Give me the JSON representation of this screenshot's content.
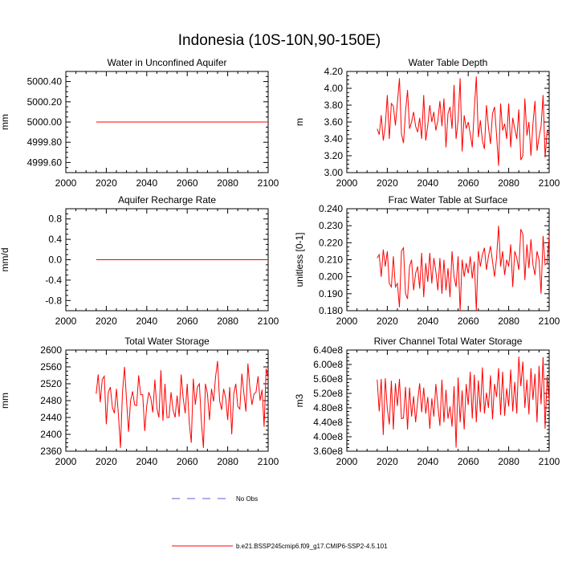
{
  "title": "Indonesia (10S-10N,90-150E)",
  "colors": {
    "series": "#ff0000",
    "obs": "#6a5acd",
    "axis": "#000000"
  },
  "legend": {
    "obs_label": "No Obs",
    "model_label": "b.e21.BSSP245cmip6.f09_g17.CMIP6-SSP2-4.5.101"
  },
  "chart_data": [
    {
      "id": "p1",
      "type": "line",
      "title": "Water in Unconfined Aquifer",
      "ylabel": "mm",
      "xlim": [
        2000,
        2100
      ],
      "ylim": [
        4999.5,
        5000.5
      ],
      "xticks": [
        2000,
        2020,
        2040,
        2060,
        2080,
        2100
      ],
      "yticks": [
        4999.6,
        4999.8,
        5000.0,
        5000.2,
        5000.4
      ],
      "yticklabels": [
        "4999.60",
        "4999.80",
        "5000.00",
        "5000.20",
        "5000.40"
      ],
      "series": [
        {
          "name": "b.e21.BSSP245cmip6.f09_g17.CMIP6-SSP2-4.5.101",
          "x_start": 2015,
          "x_end": 2100,
          "values": [
            5000.0,
            5000.0
          ]
        }
      ]
    },
    {
      "id": "p2",
      "type": "line",
      "title": "Water Table Depth",
      "ylabel": "m",
      "xlim": [
        2000,
        2100
      ],
      "ylim": [
        3.0,
        4.2
      ],
      "xticks": [
        2000,
        2020,
        2040,
        2060,
        2080,
        2100
      ],
      "yticks": [
        3.0,
        3.2,
        3.4,
        3.6,
        3.8,
        4.0,
        4.2
      ],
      "yticklabels": [
        "3.00",
        "3.20",
        "3.40",
        "3.60",
        "3.80",
        "4.00",
        "4.20"
      ],
      "series": [
        {
          "name": "b.e21.BSSP245cmip6.f09_g17.CMIP6-SSP2-4.5.101",
          "x_start": 2015,
          "x_end": 2100,
          "values": [
            3.52,
            3.45,
            3.68,
            3.38,
            3.55,
            3.92,
            3.4,
            3.82,
            3.79,
            3.56,
            3.83,
            4.12,
            3.46,
            3.35,
            3.72,
            3.98,
            3.52,
            3.6,
            3.72,
            3.55,
            3.48,
            3.65,
            3.4,
            3.92,
            3.38,
            3.56,
            3.8,
            3.6,
            3.72,
            3.5,
            3.62,
            3.85,
            3.55,
            3.88,
            3.3,
            3.7,
            3.78,
            3.52,
            4.04,
            3.4,
            3.62,
            4.12,
            3.25,
            3.68,
            3.52,
            3.6,
            3.46,
            3.3,
            3.75,
            4.14,
            3.42,
            3.62,
            3.38,
            3.28,
            3.8,
            3.54,
            3.34,
            3.7,
            3.78,
            3.45,
            3.08,
            3.82,
            3.5,
            3.58,
            3.4,
            3.82,
            3.3,
            3.65,
            3.52,
            3.4,
            3.75,
            3.15,
            3.2,
            3.88,
            3.44,
            3.6,
            3.2,
            3.58,
            3.85,
            3.26,
            3.42,
            3.55,
            3.92,
            3.18,
            3.5,
            3.45
          ]
        }
      ]
    },
    {
      "id": "p3",
      "type": "line",
      "title": "Aquifer Recharge Rate",
      "ylabel": "mm/d",
      "xlim": [
        2000,
        2100
      ],
      "ylim": [
        -1.0,
        1.0
      ],
      "xticks": [
        2000,
        2020,
        2040,
        2060,
        2080,
        2100
      ],
      "yticks": [
        -0.8,
        -0.4,
        0.0,
        0.4,
        0.8
      ],
      "yticklabels": [
        "-0.8",
        "-0.4",
        "0.0",
        "0.4",
        "0.8"
      ],
      "series": [
        {
          "name": "b.e21.BSSP245cmip6.f09_g17.CMIP6-SSP2-4.5.101",
          "x_start": 2015,
          "x_end": 2100,
          "values": [
            0.0,
            0.0
          ]
        }
      ]
    },
    {
      "id": "p4",
      "type": "line",
      "title": "Frac Water Table at Surface",
      "ylabel": "unitless [0-1]",
      "xlim": [
        2000,
        2100
      ],
      "ylim": [
        0.18,
        0.24
      ],
      "xticks": [
        2000,
        2020,
        2040,
        2060,
        2080,
        2100
      ],
      "yticks": [
        0.18,
        0.19,
        0.2,
        0.21,
        0.22,
        0.23,
        0.24
      ],
      "yticklabels": [
        "0.180",
        "0.190",
        "0.200",
        "0.210",
        "0.220",
        "0.230",
        "0.240"
      ],
      "series": [
        {
          "name": "b.e21.BSSP245cmip6.f09_g17.CMIP6-SSP2-4.5.101",
          "x_start": 2015,
          "x_end": 2100,
          "values": [
            0.211,
            0.213,
            0.2,
            0.216,
            0.206,
            0.215,
            0.196,
            0.194,
            0.212,
            0.194,
            0.196,
            0.182,
            0.215,
            0.217,
            0.19,
            0.187,
            0.206,
            0.21,
            0.192,
            0.202,
            0.206,
            0.193,
            0.214,
            0.188,
            0.208,
            0.197,
            0.214,
            0.196,
            0.211,
            0.203,
            0.192,
            0.211,
            0.19,
            0.21,
            0.192,
            0.205,
            0.188,
            0.215,
            0.2,
            0.194,
            0.212,
            0.18,
            0.21,
            0.2,
            0.208,
            0.202,
            0.212,
            0.199,
            0.209,
            0.18,
            0.215,
            0.206,
            0.213,
            0.217,
            0.204,
            0.212,
            0.218,
            0.209,
            0.2,
            0.211,
            0.23,
            0.206,
            0.215,
            0.201,
            0.21,
            0.206,
            0.219,
            0.194,
            0.215,
            0.211,
            0.204,
            0.228,
            0.225,
            0.198,
            0.219,
            0.205,
            0.222,
            0.207,
            0.201,
            0.215,
            0.21,
            0.19,
            0.224,
            0.207,
            0.208,
            0.224
          ]
        }
      ]
    },
    {
      "id": "p5",
      "type": "line",
      "title": "Total Water Storage",
      "ylabel": "mm",
      "xlim": [
        2000,
        2100
      ],
      "ylim": [
        2360,
        2600
      ],
      "xticks": [
        2000,
        2020,
        2040,
        2060,
        2080,
        2100
      ],
      "yticks": [
        2360,
        2400,
        2440,
        2480,
        2520,
        2560,
        2600
      ],
      "yticklabels": [
        "2360",
        "2400",
        "2440",
        "2480",
        "2520",
        "2560",
        "2600"
      ],
      "series": [
        {
          "name": "b.e21.BSSP245cmip6.f09_g17.CMIP6-SSP2-4.5.101",
          "x_start": 2015,
          "x_end": 2100,
          "values": [
            2496,
            2542,
            2476,
            2530,
            2538,
            2424,
            2500,
            2512,
            2464,
            2450,
            2508,
            2446,
            2368,
            2500,
            2560,
            2482,
            2406,
            2480,
            2502,
            2470,
            2468,
            2540,
            2494,
            2494,
            2408,
            2468,
            2500,
            2486,
            2452,
            2530,
            2462,
            2440,
            2552,
            2432,
            2520,
            2440,
            2440,
            2500,
            2458,
            2440,
            2492,
            2442,
            2542,
            2486,
            2450,
            2520,
            2428,
            2380,
            2532,
            2470,
            2512,
            2520,
            2430,
            2368,
            2520,
            2496,
            2434,
            2508,
            2478,
            2536,
            2574,
            2480,
            2458,
            2508,
            2486,
            2434,
            2512,
            2400,
            2496,
            2520,
            2466,
            2460,
            2544,
            2498,
            2454,
            2568,
            2508,
            2470,
            2496,
            2500,
            2538,
            2480,
            2506,
            2418,
            2556,
            2534
          ]
        }
      ]
    },
    {
      "id": "p6",
      "type": "line",
      "title": "River Channel Total Water Storage",
      "ylabel": "m3",
      "xlim": [
        2000,
        2100
      ],
      "ylim": [
        360000000.0,
        640000000.0
      ],
      "xticks": [
        2000,
        2020,
        2040,
        2060,
        2080,
        2100
      ],
      "yticks": [
        360000000.0,
        400000000.0,
        440000000.0,
        480000000.0,
        520000000.0,
        560000000.0,
        600000000.0,
        640000000.0
      ],
      "yticklabels": [
        "3.60e8",
        "4.00e8",
        "4.40e8",
        "4.80e8",
        "5.20e8",
        "5.60e8",
        "6.00e8",
        "6.40e8"
      ],
      "series": [
        {
          "name": "b.e21.BSSP245cmip6.f09_g17.CMIP6-SSP2-4.5.101",
          "x_start": 2015,
          "x_end": 2100,
          "values": [
            558000000.0,
            470000000.0,
            560000000.0,
            405000000.0,
            562000000.0,
            478000000.0,
            434000000.0,
            555000000.0,
            420000000.0,
            548000000.0,
            485000000.0,
            560000000.0,
            450000000.0,
            452000000.0,
            538000000.0,
            420000000.0,
            536000000.0,
            456000000.0,
            512000000.0,
            440000000.0,
            498000000.0,
            548000000.0,
            468000000.0,
            536000000.0,
            464000000.0,
            510000000.0,
            422000000.0,
            506000000.0,
            456000000.0,
            546000000.0,
            486000000.0,
            430000000.0,
            558000000.0,
            440000000.0,
            530000000.0,
            450000000.0,
            484000000.0,
            428000000.0,
            540000000.0,
            370000000.0,
            564000000.0,
            440000000.0,
            528000000.0,
            420000000.0,
            546000000.0,
            488000000.0,
            580000000.0,
            450000000.0,
            572000000.0,
            440000000.0,
            556000000.0,
            468000000.0,
            592000000.0,
            464000000.0,
            522000000.0,
            480000000.0,
            570000000.0,
            448000000.0,
            546000000.0,
            510000000.0,
            590000000.0,
            460000000.0,
            580000000.0,
            458000000.0,
            534000000.0,
            484000000.0,
            586000000.0,
            470000000.0,
            552000000.0,
            464000000.0,
            622000000.0,
            540000000.0,
            608000000.0,
            480000000.0,
            558000000.0,
            462000000.0,
            590000000.0,
            502000000.0,
            574000000.0,
            440000000.0,
            596000000.0,
            490000000.0,
            620000000.0,
            422000000.0,
            568000000.0,
            500000000.0
          ]
        }
      ]
    }
  ]
}
